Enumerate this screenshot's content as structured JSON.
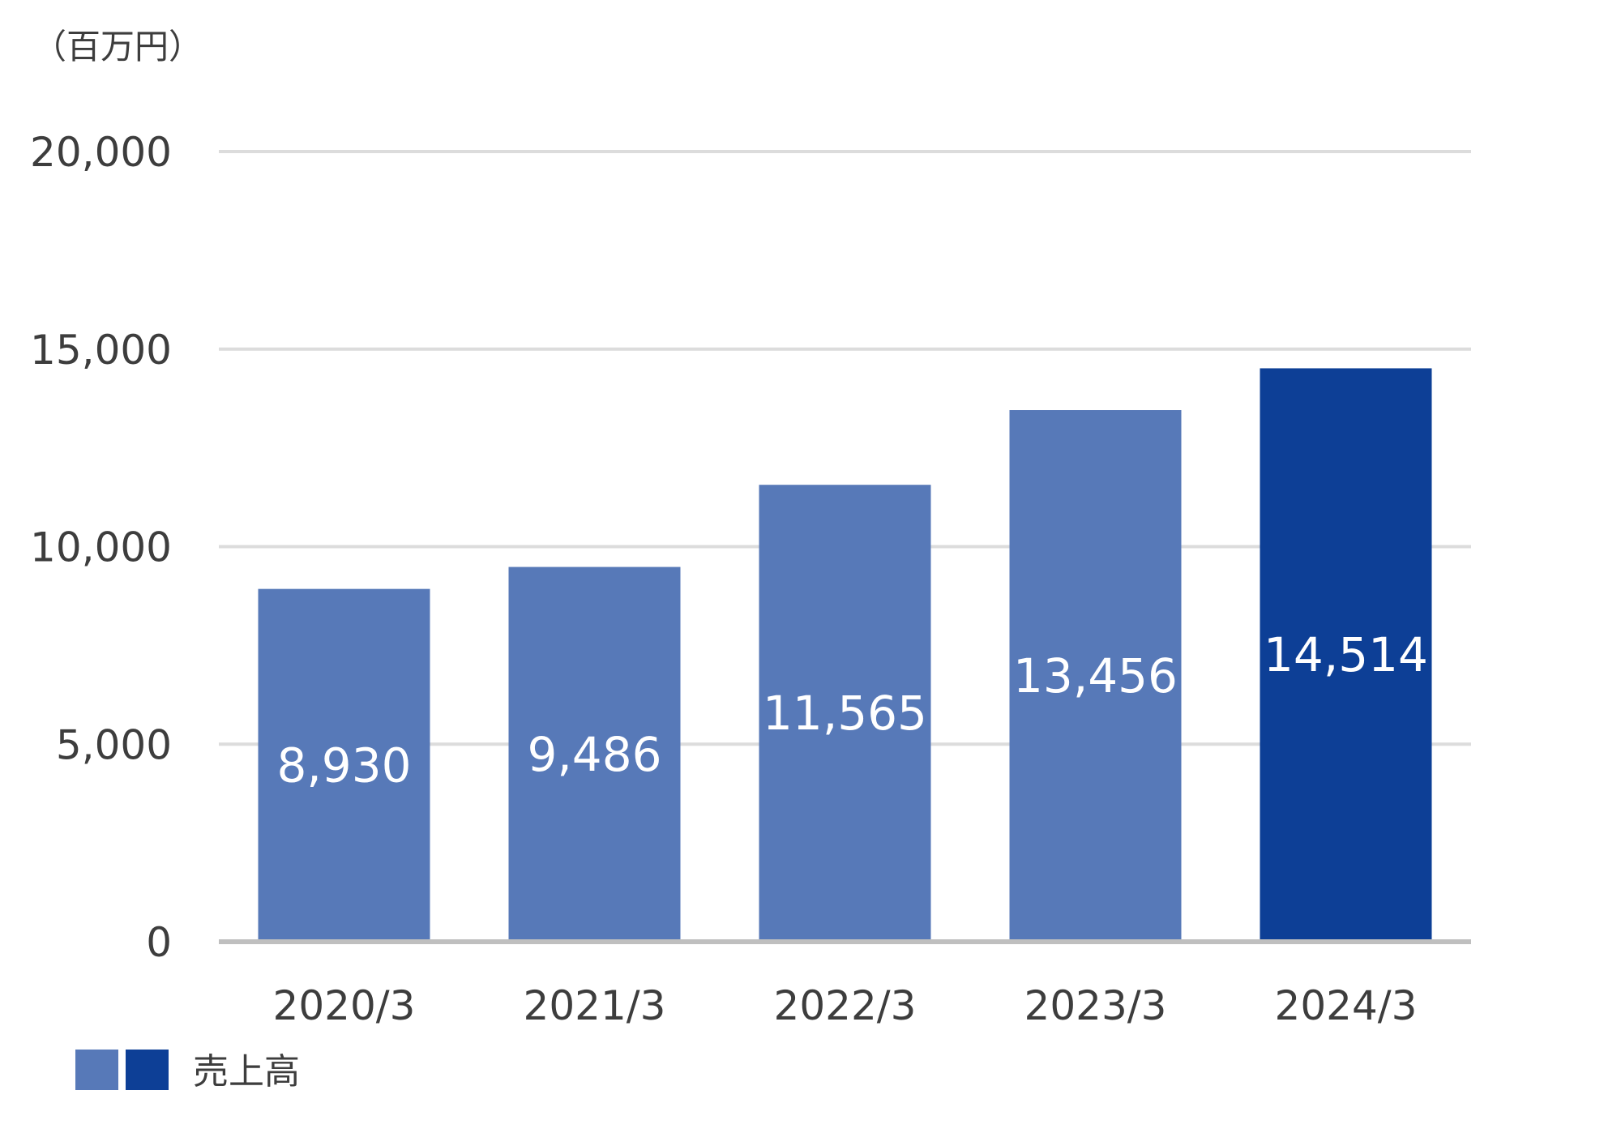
{
  "chart_data": {
    "type": "bar",
    "unit_label": "（百万円）",
    "categories": [
      "2020/3",
      "2021/3",
      "2022/3",
      "2023/3",
      "2024/3"
    ],
    "series": [
      {
        "name": "売上高",
        "values": [
          8930,
          9486,
          11565,
          13456,
          14514
        ],
        "value_labels": [
          "8,930",
          "9,486",
          "11,565",
          "13,456",
          "14,514"
        ]
      }
    ],
    "ylim": [
      0,
      20000
    ],
    "yticks": [
      0,
      5000,
      10000,
      15000,
      20000
    ],
    "ytick_labels": [
      "0",
      "5,000",
      "10,000",
      "15,000",
      "20,000"
    ],
    "grid": true,
    "legend_position": "bottom-left",
    "colors": {
      "bar": "#5779b8",
      "highlight_bar": "#0d3f96",
      "grid": "#dcdcdc",
      "axis": "#bfbfbf"
    }
  }
}
